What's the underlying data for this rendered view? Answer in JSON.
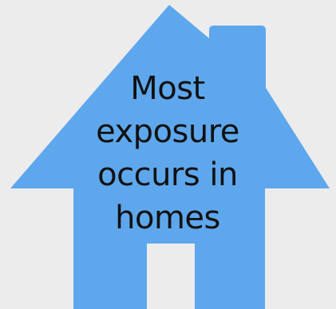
{
  "caption": {
    "lines": [
      "Most",
      "exposure",
      "occurs in",
      "homes"
    ]
  },
  "colors": {
    "background": "#ececec",
    "house": "#5ea7ec",
    "text": "#111111"
  },
  "icons": {
    "house": "house-icon"
  }
}
